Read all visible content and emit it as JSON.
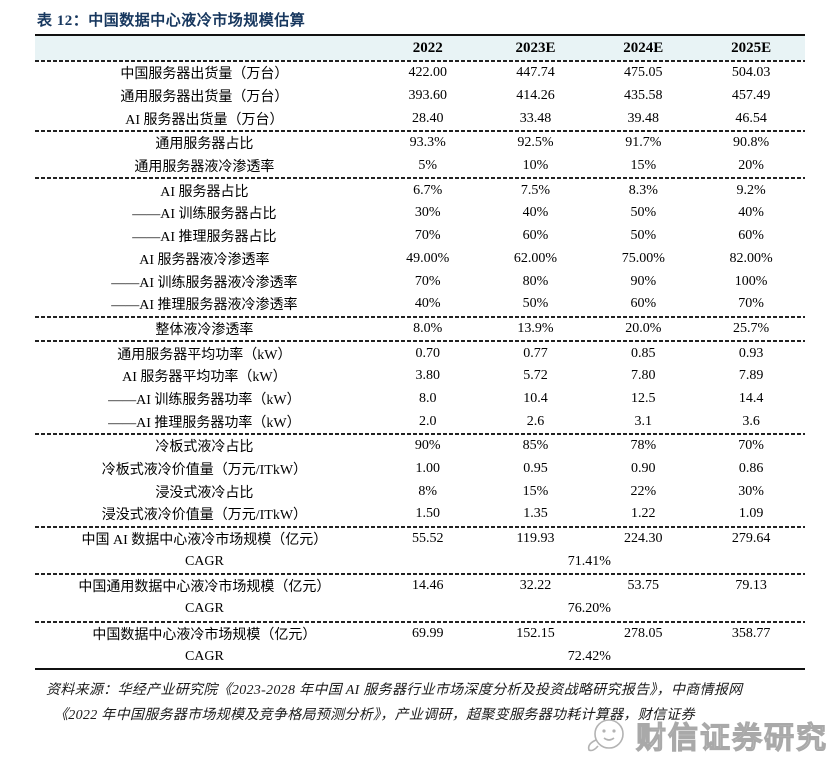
{
  "page": {
    "title": "表 12：中国数据中心液冷市场规模估算"
  },
  "table": {
    "header": {
      "label": "",
      "columns": [
        "2022",
        "2023E",
        "2024E",
        "2025E"
      ]
    },
    "sections": [
      {
        "rows": [
          {
            "label": "中国服务器出货量（万台）",
            "values": [
              "422.00",
              "447.74",
              "475.05",
              "504.03"
            ]
          },
          {
            "label": "通用服务器出货量（万台）",
            "values": [
              "393.60",
              "414.26",
              "435.58",
              "457.49"
            ]
          },
          {
            "label": "AI 服务器出货量（万台）",
            "values": [
              "28.40",
              "33.48",
              "39.48",
              "46.54"
            ]
          }
        ]
      },
      {
        "rows": [
          {
            "label": "通用服务器占比",
            "values": [
              "93.3%",
              "92.5%",
              "91.7%",
              "90.8%"
            ]
          },
          {
            "label": "通用服务器液冷渗透率",
            "values": [
              "5%",
              "10%",
              "15%",
              "20%"
            ]
          }
        ]
      },
      {
        "rows": [
          {
            "label": "AI 服务器占比",
            "values": [
              "6.7%",
              "7.5%",
              "8.3%",
              "9.2%"
            ]
          },
          {
            "label": "——AI 训练服务器占比",
            "values": [
              "30%",
              "40%",
              "50%",
              "40%"
            ]
          },
          {
            "label": "——AI 推理服务器占比",
            "values": [
              "70%",
              "60%",
              "50%",
              "60%"
            ]
          },
          {
            "label": "AI 服务器液冷渗透率",
            "values": [
              "49.00%",
              "62.00%",
              "75.00%",
              "82.00%"
            ]
          },
          {
            "label": "——AI 训练服务器液冷渗透率",
            "values": [
              "70%",
              "80%",
              "90%",
              "100%"
            ]
          },
          {
            "label": "——AI 推理服务器液冷渗透率",
            "values": [
              "40%",
              "50%",
              "60%",
              "70%"
            ]
          }
        ]
      },
      {
        "rows": [
          {
            "label": "整体液冷渗透率",
            "values": [
              "8.0%",
              "13.9%",
              "20.0%",
              "25.7%"
            ]
          }
        ]
      },
      {
        "rows": [
          {
            "label": "通用服务器平均功率（kW）",
            "values": [
              "0.70",
              "0.77",
              "0.85",
              "0.93"
            ]
          },
          {
            "label": "AI 服务器平均功率（kW）",
            "values": [
              "3.80",
              "5.72",
              "7.80",
              "7.89"
            ]
          },
          {
            "label": "——AI 训练服务器功率（kW）",
            "values": [
              "8.0",
              "10.4",
              "12.5",
              "14.4"
            ]
          },
          {
            "label": "——AI 推理服务器功率（kW）",
            "values": [
              "2.0",
              "2.6",
              "3.1",
              "3.6"
            ]
          }
        ]
      },
      {
        "rows": [
          {
            "label": "冷板式液冷占比",
            "values": [
              "90%",
              "85%",
              "78%",
              "70%"
            ]
          },
          {
            "label": "冷板式液冷价值量（万元/ITkW）",
            "values": [
              "1.00",
              "0.95",
              "0.90",
              "0.86"
            ]
          },
          {
            "label": "浸没式液冷占比",
            "values": [
              "8%",
              "15%",
              "22%",
              "30%"
            ]
          },
          {
            "label": "浸没式液冷价值量（万元/ITkW）",
            "values": [
              "1.50",
              "1.35",
              "1.22",
              "1.09"
            ]
          }
        ]
      },
      {
        "rows": [
          {
            "label": "中国 AI 数据中心液冷市场规模（亿元）",
            "values": [
              "55.52",
              "119.93",
              "224.30",
              "279.64"
            ]
          },
          {
            "label": "CAGR",
            "span_value": "71.41%"
          }
        ]
      },
      {
        "rows": [
          {
            "label": "中国通用数据中心液冷市场规模（亿元）",
            "values": [
              "14.46",
              "32.22",
              "53.75",
              "79.13"
            ]
          },
          {
            "label": "CAGR",
            "span_value": "76.20%"
          }
        ]
      },
      {
        "rows": [
          {
            "label": "中国数据中心液冷市场规模（亿元）",
            "values": [
              "69.99",
              "152.15",
              "278.05",
              "358.77"
            ]
          },
          {
            "label": "CAGR",
            "span_value": "72.42%"
          }
        ]
      }
    ]
  },
  "source": {
    "line1": "资料来源：华经产业研究院《2023-2028 年中国 AI 服务器行业市场深度分析及投资战略研究报告》，中商情报网",
    "line2": "《2022 年中国服务器市场规模及竞争格局预测分析》，产业调研，超聚变服务器功耗计算器，财信证券"
  },
  "watermark": {
    "text": "财信证券研究",
    "icon": "panda-face-icon"
  },
  "colors": {
    "header_bg": "#e8f3f5",
    "title": "#17375e",
    "border": "#111111"
  }
}
